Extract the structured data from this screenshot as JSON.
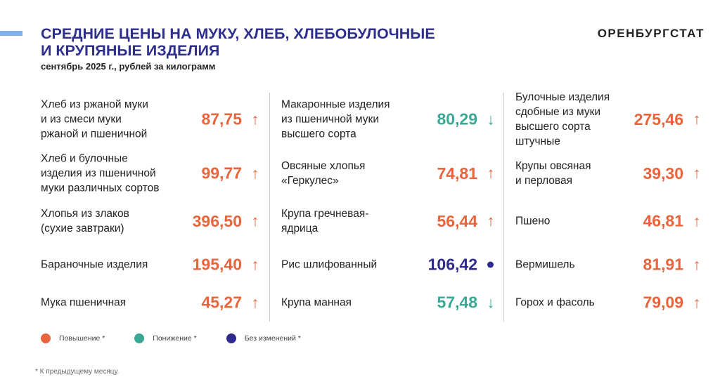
{
  "header": {
    "title_line1": "СРЕДНИЕ ЦЕНЫ НА МУКУ, ХЛЕБ, ХЛЕБОБУЛОЧНЫЕ",
    "title_line2": "И КРУПЯНЫЕ ИЗДЕЛИЯ",
    "subtitle": "сентябрь 2025 г., рублей за килограмм",
    "brand": "ОРЕНБУРГСТАТ"
  },
  "colors": {
    "up": "#e8643c",
    "down": "#3aa894",
    "same": "#2e2a8f",
    "title": "#2e2f8c"
  },
  "columns": [
    [
      {
        "name": "Хлеб из ржаной муки\nи из смеси муки\nржаной и пшеничной",
        "value": "87,75",
        "trend": "up"
      },
      {
        "name": "Хлеб и булочные\nизделия из пшеничной\nмуки различных сортов",
        "value": "99,77",
        "trend": "up"
      },
      {
        "name": "Хлопья из злаков\n(сухие завтраки)",
        "value": "396,50",
        "trend": "up"
      },
      {
        "name": "Бараночные изделия",
        "value": "195,40",
        "trend": "up"
      },
      {
        "name": "Мука пшеничная",
        "value": "45,27",
        "trend": "up"
      }
    ],
    [
      {
        "name": "Макаронные изделия\nиз пшеничной муки\nвысшего сорта",
        "value": "80,29",
        "trend": "down"
      },
      {
        "name": "Овсяные хлопья\n«Геркулес»",
        "value": "74,81",
        "trend": "up"
      },
      {
        "name": "Крупа гречневая-\nядрица",
        "value": "56,44",
        "trend": "up"
      },
      {
        "name": "Рис шлифованный",
        "value": "106,42",
        "trend": "same"
      },
      {
        "name": "Крупа манная",
        "value": "57,48",
        "trend": "down"
      }
    ],
    [
      {
        "name": "Булочные изделия\nсдобные из муки\nвысшего сорта\nштучные",
        "value": "275,46",
        "trend": "up"
      },
      {
        "name": "Крупы овсяная\nи перловая",
        "value": "39,30",
        "trend": "up"
      },
      {
        "name": "Пшено",
        "value": "46,81",
        "trend": "up"
      },
      {
        "name": "Вермишель",
        "value": "81,91",
        "trend": "up"
      },
      {
        "name": "Горох и фасоль",
        "value": "79,09",
        "trend": "up"
      }
    ]
  ],
  "legend": [
    {
      "label": "Повышение *",
      "trend": "up"
    },
    {
      "label": "Понижение *",
      "trend": "down"
    },
    {
      "label": "Без изменений *",
      "trend": "same"
    }
  ],
  "footnote": "* К предыдущему месяцу."
}
